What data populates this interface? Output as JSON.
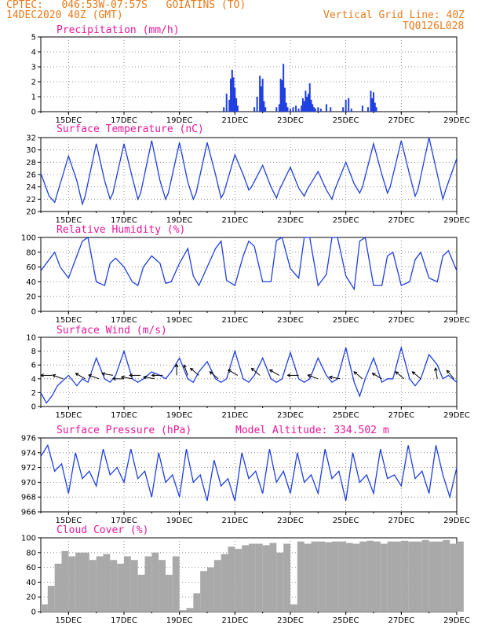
{
  "header": {
    "station": "CPTEC:   046:53W-07:57S   GOIATINS (TO)",
    "run": "14DEC2020 40Z (GMT)",
    "grid_note": "Vertical Grid Line: 40Z",
    "code": "TQ0126L028"
  },
  "colors": {
    "title": "#e8189a",
    "header": "#e87a1c",
    "line": "#1f3fe0",
    "cloud": "#a9a9a9"
  },
  "chart_data": [
    {
      "type": "bar",
      "title": "Precipitation (mm/h)",
      "ylim": [
        0,
        5
      ],
      "yticks": [
        "0",
        "1",
        "2",
        "3",
        "4",
        "5"
      ],
      "xlim": [
        14.0,
        29.0
      ],
      "xticks": [
        "15DEC",
        "17DEC",
        "19DEC",
        "21DEC",
        "23DEC",
        "25DEC",
        "27DEC",
        "29DEC"
      ],
      "x": [
        20.6,
        20.7,
        20.8,
        20.85,
        20.9,
        20.95,
        21.0,
        21.05,
        21.1,
        21.7,
        21.8,
        21.9,
        21.95,
        22.0,
        22.05,
        22.1,
        22.5,
        22.6,
        22.65,
        22.7,
        22.75,
        22.8,
        22.85,
        22.9,
        23.0,
        23.1,
        23.2,
        23.3,
        23.4,
        23.45,
        23.5,
        23.55,
        23.6,
        23.65,
        23.7,
        23.75,
        23.8,
        23.85,
        23.9,
        24.0,
        24.1,
        24.3,
        24.45,
        24.9,
        25.0,
        25.1,
        25.2,
        25.6,
        25.8,
        25.9,
        25.95,
        26.0,
        26.05,
        26.1
      ],
      "values": [
        0.3,
        1.2,
        0.8,
        2.2,
        2.8,
        2.3,
        1.6,
        0.9,
        0.4,
        0.3,
        1.0,
        2.4,
        1.7,
        2.2,
        0.7,
        0.3,
        0.3,
        0.5,
        2.2,
        2.1,
        3.2,
        1.6,
        0.6,
        0.3,
        0.2,
        0.3,
        0.4,
        0.2,
        0.4,
        0.9,
        0.7,
        1.4,
        1.0,
        1.2,
        1.9,
        0.8,
        0.5,
        0.3,
        0.2,
        0.3,
        0.2,
        0.5,
        0.3,
        0.3,
        0.8,
        0.9,
        0.2,
        0.4,
        0.3,
        1.4,
        0.9,
        1.3,
        0.6,
        0.3
      ]
    },
    {
      "type": "line",
      "title": "Surface Temperature (nC)",
      "ylim": [
        20,
        32
      ],
      "yticks": [
        "20",
        "22",
        "24",
        "26",
        "28",
        "30",
        "32"
      ],
      "xlim": [
        14.0,
        29.0
      ],
      "xticks": [
        "15DEC",
        "17DEC",
        "19DEC",
        "21DEC",
        "23DEC",
        "25DEC",
        "27DEC",
        "29DEC"
      ],
      "x": [
        14.0,
        14.3,
        14.5,
        14.6,
        15.0,
        15.3,
        15.5,
        15.6,
        16.0,
        16.3,
        16.5,
        16.6,
        17.0,
        17.3,
        17.5,
        17.6,
        18.0,
        18.3,
        18.5,
        18.6,
        19.0,
        19.3,
        19.5,
        19.6,
        20.0,
        20.3,
        20.5,
        20.6,
        21.0,
        21.3,
        21.5,
        21.6,
        22.0,
        22.3,
        22.5,
        22.6,
        23.0,
        23.3,
        23.5,
        23.6,
        24.0,
        24.3,
        24.5,
        24.6,
        25.0,
        25.3,
        25.5,
        25.6,
        26.0,
        26.3,
        26.5,
        26.6,
        27.0,
        27.3,
        27.5,
        27.6,
        28.0,
        28.3,
        28.5,
        28.6,
        29.0
      ],
      "values": [
        26.2,
        22.5,
        21.5,
        23.0,
        29.0,
        25.0,
        21.2,
        22.5,
        31.0,
        25.0,
        22.0,
        23.0,
        31.0,
        25.5,
        22.0,
        23.0,
        31.5,
        25.0,
        22.0,
        23.0,
        31.2,
        24.8,
        22.0,
        23.0,
        31.2,
        26.0,
        22.2,
        23.0,
        29.2,
        26.0,
        23.5,
        24.0,
        27.5,
        24.0,
        22.2,
        23.5,
        27.2,
        23.8,
        22.5,
        23.5,
        26.5,
        23.5,
        22.0,
        23.5,
        28.0,
        24.5,
        23.0,
        24.0,
        31.0,
        26.0,
        23.0,
        24.0,
        31.5,
        26.0,
        22.5,
        23.5,
        32.0,
        26.0,
        22.0,
        23.5,
        28.6
      ]
    },
    {
      "type": "line",
      "title": "Relative Humidity (%)",
      "ylim": [
        0,
        100
      ],
      "yticks": [
        "0",
        "20",
        "40",
        "60",
        "80",
        "100"
      ],
      "xlim": [
        14.0,
        29.0
      ],
      "xticks": [
        "15DEC",
        "17DEC",
        "19DEC",
        "21DEC",
        "23DEC",
        "25DEC",
        "27DEC",
        "29DEC"
      ],
      "x": [
        14.0,
        14.3,
        14.5,
        14.7,
        15.0,
        15.3,
        15.5,
        15.7,
        16.0,
        16.3,
        16.5,
        16.7,
        17.0,
        17.3,
        17.5,
        17.7,
        18.0,
        18.3,
        18.5,
        18.7,
        19.0,
        19.3,
        19.5,
        19.7,
        20.0,
        20.3,
        20.5,
        20.7,
        21.0,
        21.3,
        21.5,
        21.7,
        22.0,
        22.3,
        22.5,
        22.7,
        23.0,
        23.3,
        23.5,
        23.7,
        24.0,
        24.3,
        24.5,
        24.7,
        25.0,
        25.3,
        25.5,
        25.7,
        26.0,
        26.3,
        26.5,
        26.7,
        27.0,
        27.3,
        27.5,
        27.7,
        28.0,
        28.3,
        28.5,
        28.7,
        29.0
      ],
      "values": [
        55,
        70,
        80,
        60,
        45,
        75,
        95,
        100,
        40,
        35,
        65,
        72,
        60,
        40,
        35,
        60,
        75,
        65,
        38,
        40,
        65,
        85,
        48,
        35,
        60,
        85,
        95,
        42,
        35,
        75,
        95,
        88,
        40,
        40,
        96,
        100,
        58,
        45,
        100,
        100,
        35,
        50,
        100,
        100,
        48,
        30,
        95,
        100,
        35,
        35,
        75,
        80,
        35,
        40,
        70,
        80,
        45,
        40,
        75,
        82,
        55
      ]
    },
    {
      "type": "line",
      "title": "Surface Wind (m/s)",
      "ylim": [
        0,
        10
      ],
      "yticks": [
        "0",
        "2",
        "4",
        "6",
        "8",
        "10"
      ],
      "xlim": [
        14.0,
        29.0
      ],
      "xticks": [
        "15DEC",
        "17DEC",
        "19DEC",
        "21DEC",
        "23DEC",
        "25DEC",
        "27DEC",
        "29DEC"
      ],
      "x": [
        14.0,
        14.2,
        14.4,
        14.6,
        15.0,
        15.3,
        15.5,
        15.7,
        16.0,
        16.3,
        16.5,
        16.7,
        17.0,
        17.3,
        17.5,
        17.7,
        18.0,
        18.3,
        18.5,
        18.7,
        19.0,
        19.3,
        19.5,
        19.7,
        20.0,
        20.3,
        20.5,
        20.7,
        21.0,
        21.3,
        21.5,
        21.7,
        22.0,
        22.3,
        22.5,
        22.7,
        23.0,
        23.3,
        23.5,
        23.7,
        24.0,
        24.3,
        24.5,
        24.7,
        25.0,
        25.3,
        25.5,
        25.7,
        26.0,
        26.3,
        26.5,
        26.7,
        27.0,
        27.3,
        27.5,
        27.7,
        28.0,
        28.3,
        28.5,
        28.7,
        29.0
      ],
      "values": [
        2.0,
        0.5,
        1.5,
        3.0,
        4.5,
        3.0,
        4.0,
        3.5,
        7.0,
        4.0,
        3.5,
        4.5,
        8.0,
        4.0,
        3.5,
        4.0,
        5.0,
        4.5,
        4.0,
        5.0,
        7.0,
        4.0,
        3.5,
        5.0,
        6.5,
        4.0,
        3.5,
        4.0,
        8.0,
        4.0,
        3.5,
        4.5,
        7.0,
        4.0,
        3.5,
        4.0,
        7.8,
        4.0,
        3.5,
        4.0,
        7.0,
        4.5,
        3.5,
        4.0,
        8.5,
        3.5,
        1.5,
        4.0,
        7.0,
        3.5,
        4.0,
        4.0,
        8.5,
        4.0,
        3.0,
        4.0,
        7.5,
        6.0,
        4.0,
        4.5,
        3.5
      ],
      "arrows": [
        {
          "x": 14.4,
          "dir": 180,
          "speed": 4.5
        },
        {
          "x": 14.8,
          "dir": 200,
          "speed": 4.0
        },
        {
          "x": 15.6,
          "dir": 210,
          "speed": 4.0
        },
        {
          "x": 16.1,
          "dir": 200,
          "speed": 4.0
        },
        {
          "x": 16.6,
          "dir": 190,
          "speed": 4.5
        },
        {
          "x": 17.0,
          "dir": 180,
          "speed": 4.0
        },
        {
          "x": 17.3,
          "dir": 190,
          "speed": 4.0
        },
        {
          "x": 17.6,
          "dir": 180,
          "speed": 4.5
        },
        {
          "x": 18.1,
          "dir": 190,
          "speed": 4.0
        },
        {
          "x": 18.4,
          "dir": 180,
          "speed": 4.5
        },
        {
          "x": 18.9,
          "dir": 270,
          "speed": 4.5
        },
        {
          "x": 19.3,
          "dir": 250,
          "speed": 4.5
        },
        {
          "x": 19.7,
          "dir": 220,
          "speed": 4.5
        },
        {
          "x": 20.4,
          "dir": 220,
          "speed": 4.0
        },
        {
          "x": 21.1,
          "dir": 210,
          "speed": 4.5
        },
        {
          "x": 21.9,
          "dir": 220,
          "speed": 4.5
        },
        {
          "x": 22.6,
          "dir": 210,
          "speed": 4.5
        },
        {
          "x": 23.3,
          "dir": 180,
          "speed": 4.5
        },
        {
          "x": 24.0,
          "dir": 200,
          "speed": 4.0
        },
        {
          "x": 24.8,
          "dir": 190,
          "speed": 4.0
        },
        {
          "x": 25.6,
          "dir": 220,
          "speed": 4.0
        },
        {
          "x": 26.3,
          "dir": 210,
          "speed": 4.0
        },
        {
          "x": 27.1,
          "dir": 220,
          "speed": 4.0
        },
        {
          "x": 27.7,
          "dir": 220,
          "speed": 4.0
        },
        {
          "x": 28.3,
          "dir": 260,
          "speed": 4.0
        },
        {
          "x": 28.9,
          "dir": 230,
          "speed": 4.0
        }
      ]
    },
    {
      "type": "line",
      "title": "Surface Pressure (hPa)",
      "subtitle": "Model Altitude: 334.502 m",
      "ylim": [
        966,
        976
      ],
      "yticks": [
        "966",
        "968",
        "970",
        "972",
        "974",
        "976"
      ],
      "xlim": [
        14.0,
        29.0
      ],
      "xticks": [
        "15DEC",
        "17DEC",
        "19DEC",
        "21DEC",
        "23DEC",
        "25DEC",
        "27DEC",
        "29DEC"
      ],
      "x": [
        14.0,
        14.25,
        14.5,
        14.75,
        15.0,
        15.25,
        15.5,
        15.75,
        16.0,
        16.25,
        16.5,
        16.75,
        17.0,
        17.25,
        17.5,
        17.75,
        18.0,
        18.25,
        18.5,
        18.75,
        19.0,
        19.25,
        19.5,
        19.75,
        20.0,
        20.25,
        20.5,
        20.75,
        21.0,
        21.25,
        21.5,
        21.75,
        22.0,
        22.25,
        22.5,
        22.75,
        23.0,
        23.25,
        23.5,
        23.75,
        24.0,
        24.25,
        24.5,
        24.75,
        25.0,
        25.25,
        25.5,
        25.75,
        26.0,
        26.25,
        26.5,
        26.75,
        27.0,
        27.25,
        27.5,
        27.75,
        28.0,
        28.25,
        28.5,
        28.75,
        29.0
      ],
      "values": [
        973.5,
        975.0,
        971.5,
        972.5,
        968.5,
        974.0,
        970.5,
        971.5,
        969.5,
        974.5,
        971.0,
        972.0,
        970.0,
        974.5,
        970.5,
        971.5,
        968.0,
        974.0,
        970.0,
        971.0,
        968.0,
        974.5,
        970.0,
        971.0,
        967.5,
        973.0,
        969.5,
        970.5,
        967.5,
        974.0,
        970.5,
        971.5,
        968.5,
        974.5,
        970.0,
        971.5,
        968.5,
        974.0,
        970.0,
        971.0,
        968.5,
        974.5,
        970.5,
        971.5,
        967.5,
        974.0,
        970.0,
        971.0,
        968.5,
        974.5,
        970.5,
        971.0,
        969.5,
        975.0,
        970.5,
        971.5,
        968.5,
        975.0,
        971.0,
        968.0,
        972.0
      ]
    },
    {
      "type": "bar",
      "title": "Cloud Cover (%)",
      "ylim": [
        0,
        100
      ],
      "yticks": [
        "0",
        "20",
        "40",
        "60",
        "80",
        "100"
      ],
      "xlim": [
        14.0,
        29.0
      ],
      "xticks": [
        "15DEC",
        "17DEC",
        "19DEC",
        "21DEC",
        "23DEC",
        "25DEC",
        "27DEC",
        "29DEC"
      ],
      "x": [
        14.0,
        14.25,
        14.5,
        14.75,
        15.0,
        15.25,
        15.5,
        15.75,
        16.0,
        16.25,
        16.5,
        16.75,
        17.0,
        17.25,
        17.5,
        17.75,
        18.0,
        18.25,
        18.5,
        18.75,
        19.0,
        19.25,
        19.5,
        19.75,
        20.0,
        20.25,
        20.5,
        20.75,
        21.0,
        21.25,
        21.5,
        21.75,
        22.0,
        22.25,
        22.5,
        22.75,
        23.0,
        23.25,
        23.5,
        23.75,
        24.0,
        24.25,
        24.5,
        24.75,
        25.0,
        25.25,
        25.5,
        25.75,
        26.0,
        26.25,
        26.5,
        26.75,
        27.0,
        27.25,
        27.5,
        27.75,
        28.0,
        28.25,
        28.5,
        28.75,
        29.0
      ],
      "values": [
        10,
        35,
        65,
        82,
        75,
        80,
        80,
        70,
        75,
        78,
        70,
        65,
        75,
        70,
        50,
        75,
        80,
        70,
        50,
        75,
        2,
        5,
        25,
        55,
        60,
        70,
        78,
        88,
        85,
        90,
        92,
        92,
        90,
        93,
        80,
        92,
        10,
        95,
        92,
        95,
        95,
        94,
        95,
        95,
        93,
        92,
        95,
        96,
        95,
        92,
        95,
        95,
        96,
        95,
        95,
        97,
        95,
        95,
        97,
        92,
        95
      ]
    }
  ]
}
